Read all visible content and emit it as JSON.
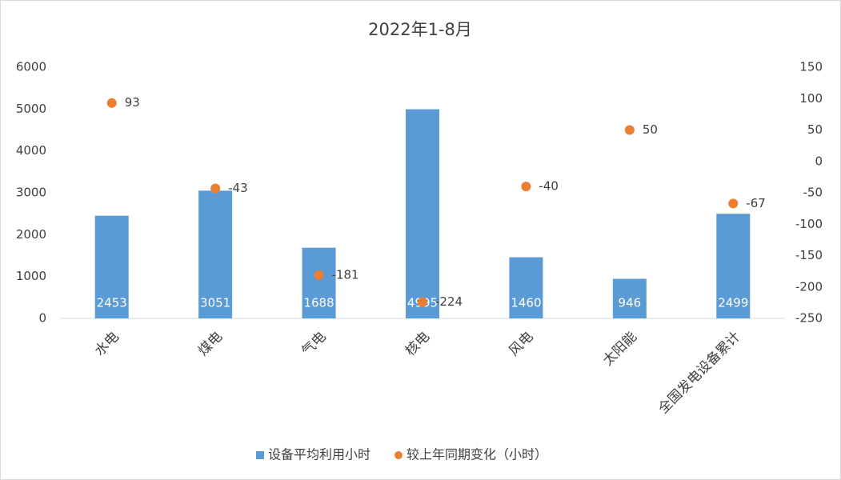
{
  "chart_data": {
    "type": "combo",
    "title": "2022年1-8月",
    "categories": [
      "水电",
      "煤电",
      "气电",
      "核电",
      "风电",
      "太阳能",
      "全国发电设备累计"
    ],
    "series": [
      {
        "name": "设备平均利用小时",
        "type": "bar",
        "color": "#5b9bd5",
        "values": [
          2453,
          3051,
          1688,
          4995,
          1460,
          946,
          2499
        ]
      },
      {
        "name": "较上年同期变化（小时）",
        "type": "scatter",
        "axis": "y2",
        "color": "#ed7d31",
        "values": [
          93,
          -43,
          -181,
          -224,
          -40,
          50,
          -67
        ]
      }
    ],
    "ylim": [
      0,
      6000
    ],
    "yticks": [
      0,
      1000,
      2000,
      3000,
      4000,
      5000,
      6000
    ],
    "y2lim": [
      -250,
      150
    ],
    "y2ticks": [
      -250,
      -200,
      -150,
      -100,
      -50,
      0,
      50,
      100,
      150
    ],
    "legend": "bottom"
  }
}
